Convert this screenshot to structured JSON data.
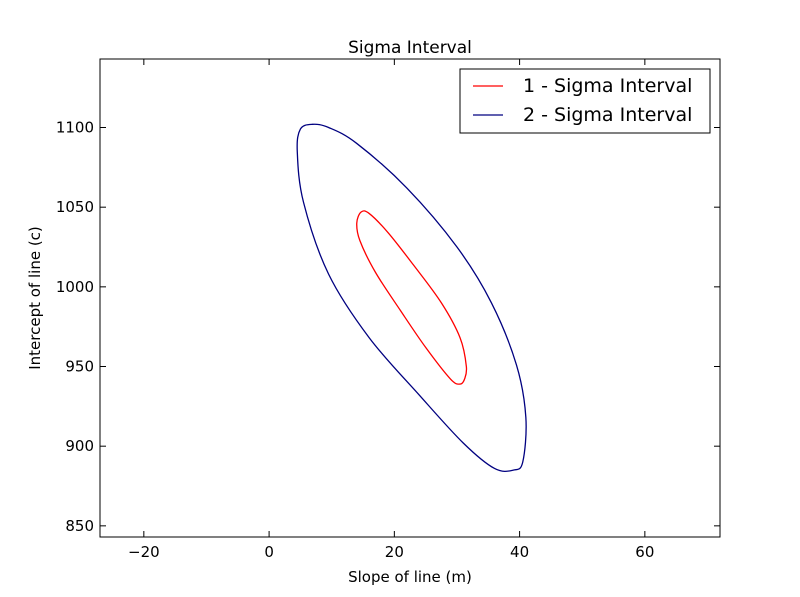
{
  "chart_data": {
    "type": "line",
    "title": "Sigma Interval",
    "xlabel": "Slope of line (m)",
    "ylabel": "Intercept of line (c)",
    "xlim": [
      -27,
      72
    ],
    "ylim": [
      843,
      1143
    ],
    "xticks": [
      -20,
      0,
      20,
      40,
      60
    ],
    "xtick_labels": [
      "−20",
      "0",
      "20",
      "40",
      "60"
    ],
    "yticks": [
      850,
      900,
      950,
      1000,
      1050,
      1100
    ],
    "ytick_labels": [
      "850",
      "900",
      "950",
      "1000",
      "1050",
      "1100"
    ],
    "grid": false,
    "legend": {
      "position": "top-right"
    },
    "series": [
      {
        "name": "1 - Sigma Interval",
        "color": "#ff0000",
        "shape": "ellipse",
        "x": [
          14.0,
          14.7,
          16.0,
          19.0,
          23.0,
          27.5,
          30.5,
          31.5,
          31.2,
          30.5,
          29.0,
          25.0,
          21.0,
          17.0,
          14.5,
          14.0
        ],
        "y": [
          1040.0,
          1047.0,
          1046.0,
          1034.0,
          1014.0,
          990.0,
          968.0,
          950.0,
          942.0,
          939.0,
          942.0,
          962.0,
          985.0,
          1009.0,
          1029.0,
          1040.0
        ]
      },
      {
        "name": "2 - Sigma Interval",
        "color": "#000080",
        "shape": "ellipse",
        "x": [
          4.5,
          5.0,
          6.9,
          9.5,
          14.0,
          22.0,
          30.0,
          35.5,
          39.5,
          41.0,
          40.5,
          39.0,
          36.0,
          31.0,
          24.0,
          16.0,
          9.5,
          5.5,
          4.5
        ],
        "y": [
          1085.0,
          1099.0,
          1102.0,
          1100.0,
          1090.0,
          1062.0,
          1025.0,
          990.0,
          951.0,
          918.0,
          890.0,
          885.0,
          886.0,
          902.0,
          932.0,
          968.0,
          1008.0,
          1053.0,
          1085.0
        ]
      }
    ]
  }
}
